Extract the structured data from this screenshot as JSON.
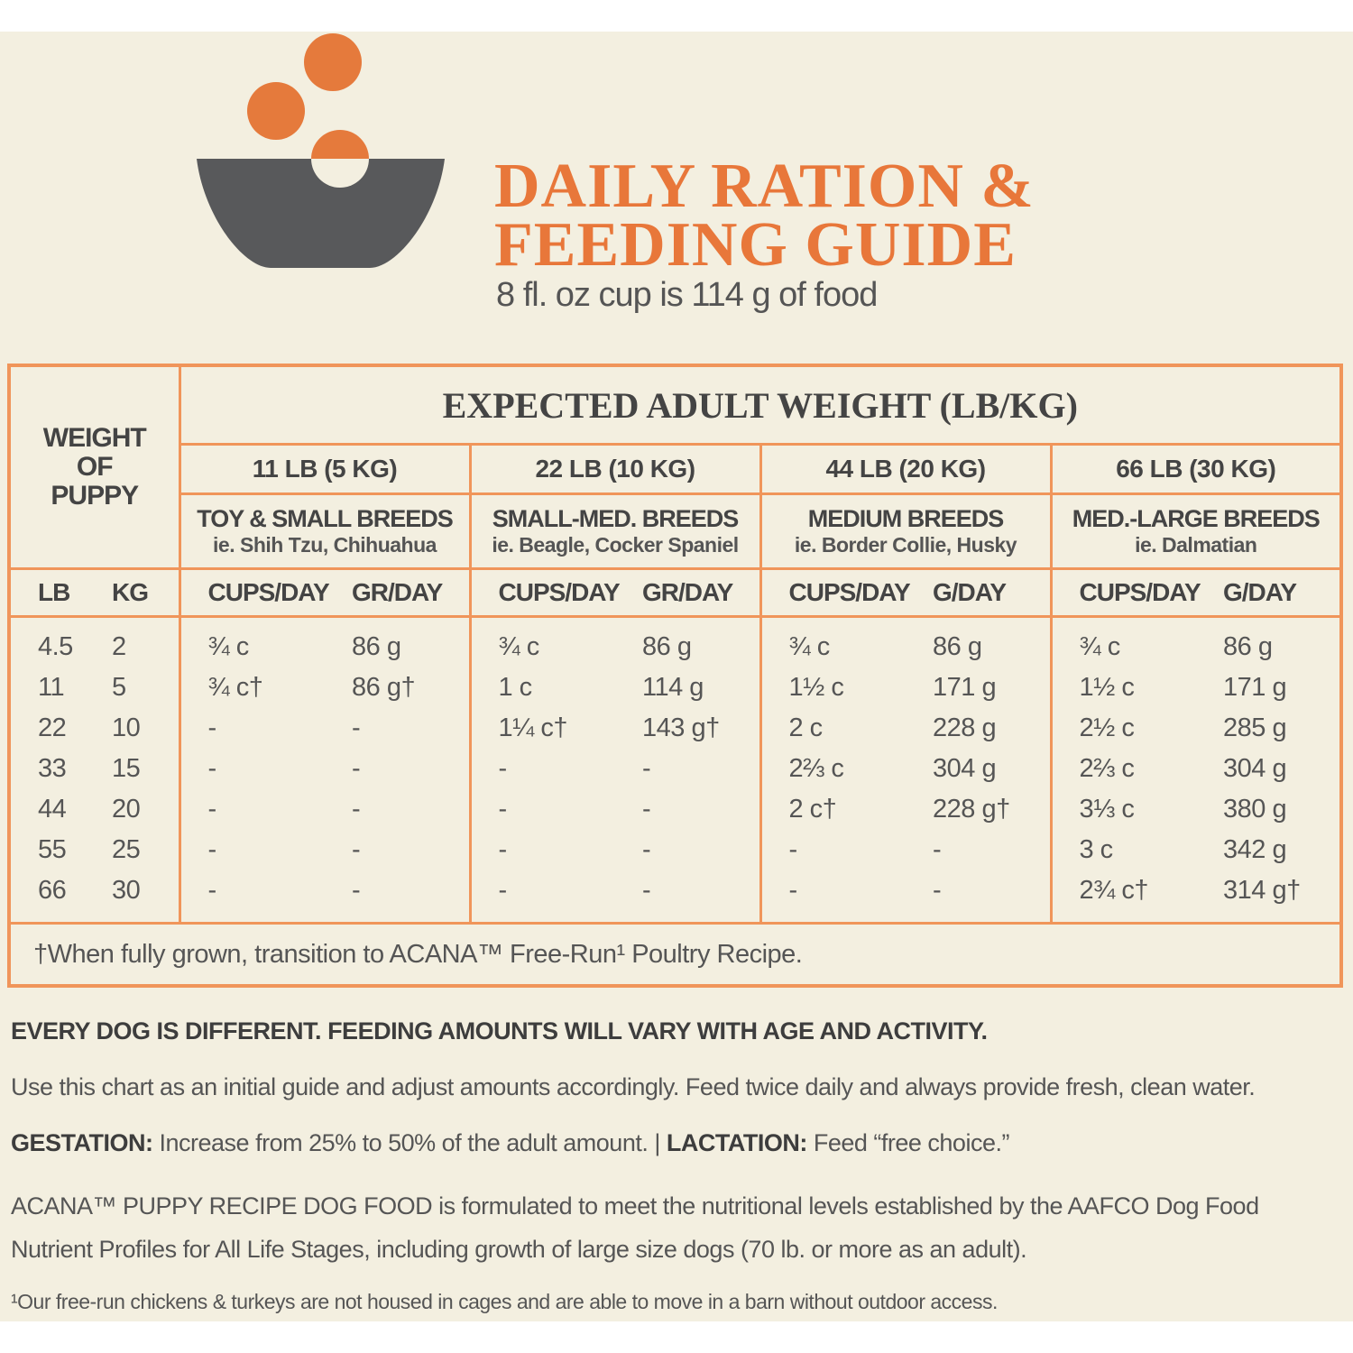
{
  "header": {
    "title_lines": [
      "DAILY RATION &",
      "FEEDING GUIDE"
    ],
    "subtitle": "8 fl. oz cup is 114 g of food"
  },
  "table": {
    "row_header": [
      "WEIGHT",
      "OF",
      "PUPPY"
    ],
    "group_header": "EXPECTED ADULT WEIGHT (LB/KG)",
    "columns": [
      {
        "weight": "11 LB (5 KG)",
        "breed": "TOY & SMALL BREEDS",
        "example": "ie. Shih Tzu, Chihuahua",
        "units": [
          "CUPS/DAY",
          "GR/DAY"
        ]
      },
      {
        "weight": "22 LB (10 KG)",
        "breed": "SMALL-MED. BREEDS",
        "example": "ie. Beagle, Cocker Spaniel",
        "units": [
          "CUPS/DAY",
          "GR/DAY"
        ]
      },
      {
        "weight": "44 LB (20 KG)",
        "breed": "MEDIUM BREEDS",
        "example": "ie. Border Collie, Husky",
        "units": [
          "CUPS/DAY",
          "G/DAY"
        ]
      },
      {
        "weight": "66 LB (30 KG)",
        "breed": "MED.-LARGE BREEDS",
        "example": "ie. Dalmatian",
        "units": [
          "CUPS/DAY",
          "G/DAY"
        ]
      }
    ],
    "weight_units": [
      "LB",
      "KG"
    ],
    "rows": [
      [
        "4.5",
        "2",
        "¾ c",
        "86 g",
        "¾ c",
        "86 g",
        "¾ c",
        "86 g",
        "¾ c",
        "86 g"
      ],
      [
        "11",
        "5",
        "¾ c†",
        "86 g†",
        "1 c",
        "114 g",
        "1½ c",
        "171 g",
        "1½ c",
        "171 g"
      ],
      [
        "22",
        "10",
        "-",
        "-",
        "1¼ c†",
        "143 g†",
        "2 c",
        "228 g",
        "2½ c",
        "285 g"
      ],
      [
        "33",
        "15",
        "-",
        "-",
        "-",
        "-",
        "2⅔ c",
        "304 g",
        "2⅔ c",
        "304 g"
      ],
      [
        "44",
        "20",
        "-",
        "-",
        "-",
        "-",
        "2 c†",
        "228 g†",
        "3⅓ c",
        "380 g"
      ],
      [
        "55",
        "25",
        "-",
        "-",
        "-",
        "-",
        "-",
        "-",
        "3 c",
        "342 g"
      ],
      [
        "66",
        "30",
        "-",
        "-",
        "-",
        "-",
        "-",
        "-",
        "2¾ c†",
        "314 g†"
      ]
    ],
    "footnote": "†When fully grown, transition to ACANA™ Free-Run¹ Poultry Recipe."
  },
  "notes": {
    "heading": "EVERY DOG IS DIFFERENT. FEEDING AMOUNTS WILL VARY WITH AGE AND ACTIVITY.",
    "usage": "Use this chart as an initial guide and adjust amounts accordingly. Feed twice daily and always provide fresh, clean water.",
    "gestation_label": "GESTATION:",
    "gestation_text": "Increase from 25% to 50% of the adult amount. |",
    "lactation_label": "LACTATION:",
    "lactation_text": "Feed “free choice.”",
    "aafco": "ACANA™ PUPPY RECIPE DOG FOOD is formulated to meet the nutritional levels established by the AAFCO Dog Food Nutrient Profiles for All Life Stages, including growth of large size dogs (70 lb. or more as an adult).",
    "footnote": "¹Our free-run chickens & turkeys are not housed in cages and are able to move in a barn without outdoor access."
  }
}
